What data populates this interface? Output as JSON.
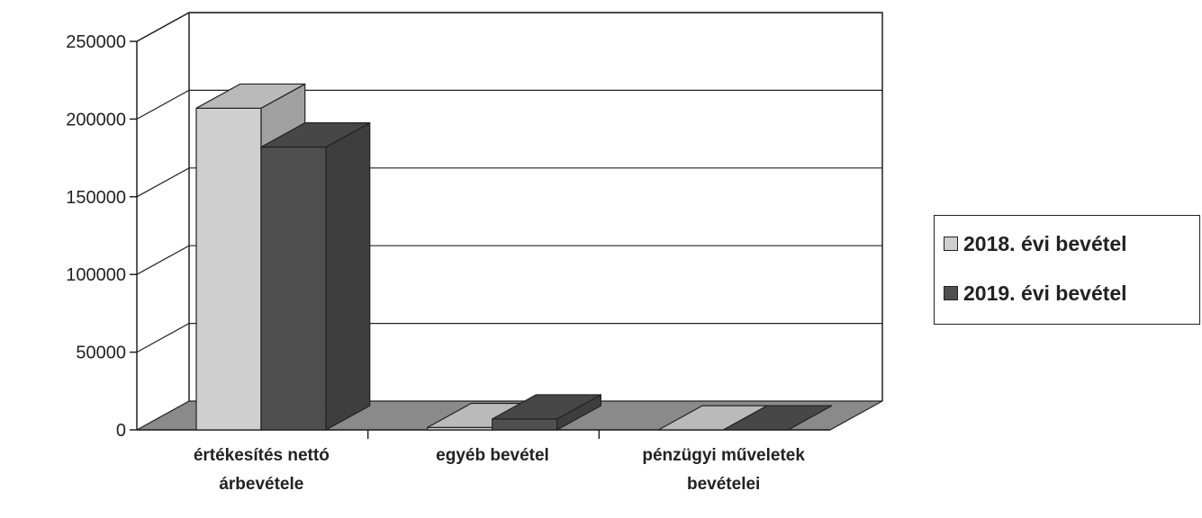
{
  "chart_data": {
    "type": "bar",
    "subtype": "3d-clustered-column",
    "title": "",
    "xlabel": "",
    "ylabel": "",
    "ylim": [
      0,
      250000
    ],
    "yticks": [
      "0",
      "50000",
      "100000",
      "150000",
      "200000",
      "250000"
    ],
    "categories": [
      [
        "értékesítés nettó",
        "árbevétele"
      ],
      [
        "egyéb bevétel"
      ],
      [
        "pénzügyi műveletek",
        "bevételei"
      ]
    ],
    "series": [
      {
        "name": "2018. évi bevétel",
        "values": [
          207000,
          1500,
          0
        ],
        "color": "#cfcfcf"
      },
      {
        "name": "2019. évi bevétel",
        "values": [
          182000,
          7000,
          0
        ],
        "color": "#4f4f4f"
      }
    ],
    "grid": true,
    "legend_position": "right"
  }
}
